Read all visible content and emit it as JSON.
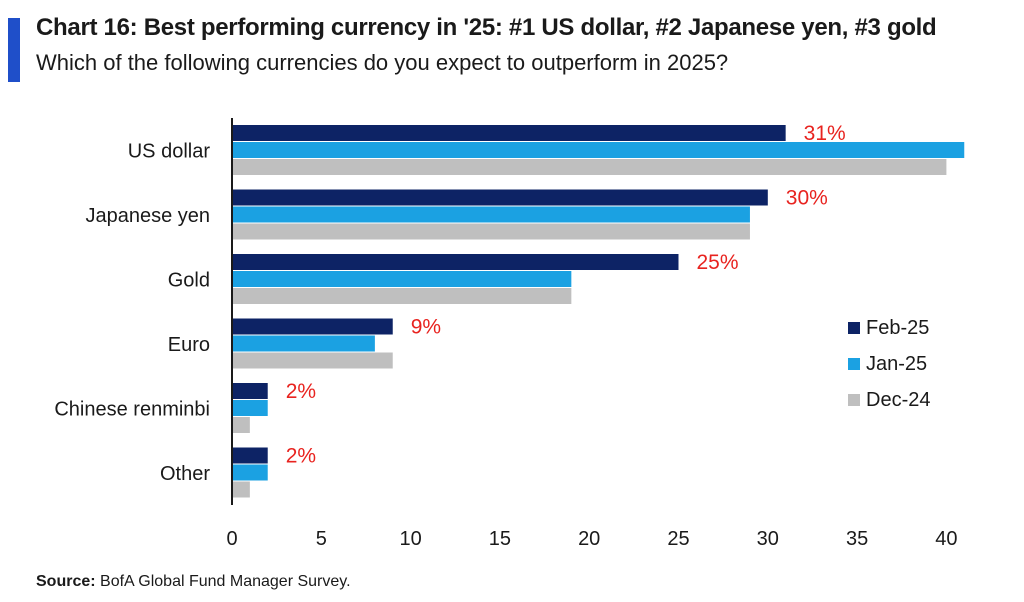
{
  "header": {
    "title": "Chart 16: Best performing currency in '25: #1 US dollar, #2 Japanese yen, #3 gold",
    "subtitle": "Which of the following currencies do you expect to outperform in 2025?"
  },
  "footer": {
    "source_label": "Source:",
    "source_text": " BofA Global Fund Manager Survey."
  },
  "colors": {
    "accent": "#1f4fc9",
    "feb25": "#0d2365",
    "jan25": "#1ba1e2",
    "dec24": "#bfbfbf",
    "label": "#e8231f"
  },
  "chart_data": {
    "type": "bar",
    "orientation": "horizontal",
    "categories": [
      "US dollar",
      "Japanese yen",
      "Gold",
      "Euro",
      "Chinese renminbi",
      "Other"
    ],
    "series": [
      {
        "name": "Feb-25",
        "values": [
          31,
          30,
          25,
          9,
          2,
          2
        ]
      },
      {
        "name": "Jan-25",
        "values": [
          41,
          29,
          19,
          8,
          2,
          2
        ]
      },
      {
        "name": "Dec-24",
        "values": [
          40,
          29,
          19,
          9,
          1,
          1
        ]
      }
    ],
    "data_labels": [
      "31%",
      "30%",
      "25%",
      "9%",
      "2%",
      "2%"
    ],
    "xlim": [
      0,
      41.5
    ],
    "xticks": [
      0,
      5,
      10,
      15,
      20,
      25,
      30,
      35,
      40
    ],
    "legend": "right",
    "grid": false
  }
}
